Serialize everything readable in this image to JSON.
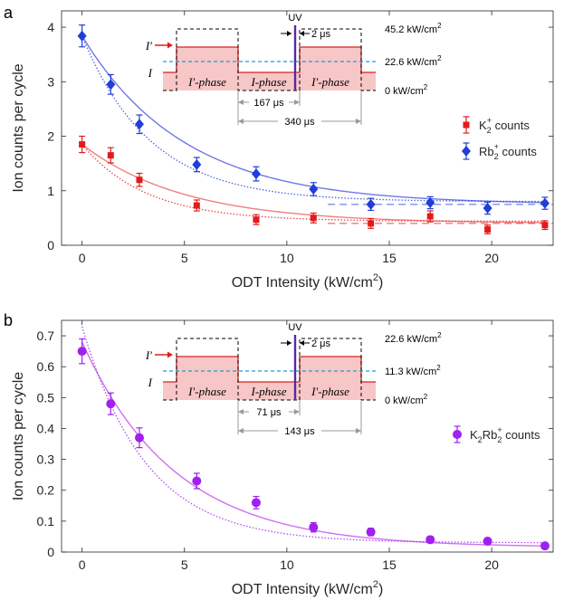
{
  "chart_data": [
    {
      "panel": "a",
      "type": "scatter",
      "xlabel": "ODT Intensity (kW/cm",
      "xlabel_sup": "2",
      "xlabel_end": ")",
      "ylabel": "Ion counts per cycle",
      "xlim": [
        -1,
        23
      ],
      "ylim": [
        0,
        4.3
      ],
      "xticks": [
        0,
        5,
        10,
        15,
        20
      ],
      "yticks": [
        0,
        1,
        2,
        3,
        4
      ],
      "series": [
        {
          "name": "K2+ counts",
          "legend": {
            "base": "K",
            "sub": "2",
            "sup": "+",
            "rest": " counts"
          },
          "color": "#e31a1c",
          "fit_color": "#f08080",
          "marker": "square",
          "x": [
            0,
            1.4,
            2.8,
            5.6,
            8.5,
            11.3,
            14.1,
            17.0,
            19.8,
            22.6
          ],
          "y": [
            1.85,
            1.65,
            1.2,
            0.73,
            0.47,
            0.5,
            0.4,
            0.53,
            0.29,
            0.37
          ],
          "err": [
            0.15,
            0.14,
            0.12,
            0.1,
            0.09,
            0.09,
            0.09,
            0.1,
            0.08,
            0.08
          ],
          "asymptote": 0.4,
          "fit_solid": {
            "a": 1.85,
            "c": 0.4,
            "k": 0.2
          },
          "fit_dotted": {
            "a": 1.85,
            "c": 0.44,
            "k": 0.32
          }
        },
        {
          "name": "Rb2+ counts",
          "legend": {
            "base": "Rb",
            "sub": "2",
            "sup": "+",
            "rest": " counts"
          },
          "color": "#1f3fd6",
          "fit_color": "#6f78e8",
          "marker": "diamond",
          "x": [
            0,
            1.4,
            2.8,
            5.6,
            8.5,
            11.3,
            14.1,
            17.0,
            19.8,
            22.6
          ],
          "y": [
            3.84,
            2.95,
            2.22,
            1.48,
            1.31,
            1.03,
            0.75,
            0.78,
            0.68,
            0.77
          ],
          "err": [
            0.2,
            0.18,
            0.17,
            0.13,
            0.13,
            0.12,
            0.11,
            0.11,
            0.11,
            0.11
          ],
          "asymptote": 0.75,
          "fit_solid": {
            "a": 3.84,
            "c": 0.75,
            "k": 0.2
          },
          "fit_dotted": {
            "a": 3.84,
            "c": 0.8,
            "k": 0.3
          }
        }
      ],
      "inset": {
        "uv_label": "UV",
        "pulse_label": "2 μs",
        "levels": [
          "45.2 kW/cm",
          "22.6 kW/cm",
          "0 kW/cm"
        ],
        "level_sup": "2",
        "phases": [
          "I′-phase",
          "I-phase",
          "I′-phase"
        ],
        "i_prime": "I′",
        "i": "I",
        "span1": "167 μs",
        "span2": "340 μs"
      }
    },
    {
      "panel": "b",
      "type": "scatter",
      "xlabel": "ODT Intensity (kW/cm",
      "xlabel_sup": "2",
      "xlabel_end": ")",
      "ylabel": "Ion counts per cycle",
      "xlim": [
        -1,
        23
      ],
      "ylim": [
        0,
        0.75
      ],
      "xticks": [
        0,
        5,
        10,
        15,
        20
      ],
      "yticks": [
        0,
        0.1,
        0.2,
        0.3,
        0.4,
        0.5,
        0.6,
        0.7
      ],
      "series": [
        {
          "name": "K2Rb2+ counts",
          "legend": {
            "base": "K",
            "sub": "2",
            "mid": "Rb",
            "sub2": "2",
            "sup": "+",
            "rest": " counts"
          },
          "color": "#a020f0",
          "fit_color": "#d070f0",
          "marker": "circle",
          "x": [
            0,
            1.4,
            2.8,
            5.6,
            8.5,
            11.3,
            14.1,
            17.0,
            19.8,
            22.6
          ],
          "y": [
            0.65,
            0.48,
            0.37,
            0.23,
            0.16,
            0.08,
            0.065,
            0.04,
            0.035,
            0.02
          ],
          "err": [
            0.04,
            0.035,
            0.032,
            0.025,
            0.02,
            0.015,
            0.012,
            0.01,
            0.008,
            0.007
          ],
          "fit_solid": {
            "a": 0.68,
            "c": 0.015,
            "k": 0.22
          },
          "fit_dotted": {
            "a": 0.73,
            "c": 0.03,
            "k": 0.32
          }
        }
      ],
      "inset": {
        "uv_label": "UV",
        "pulse_label": "2 μs",
        "levels": [
          "22.6 kW/cm",
          "11.3 kW/cm",
          "0 kW/cm"
        ],
        "level_sup": "2",
        "phases": [
          "I′-phase",
          "I-phase",
          "I′-phase"
        ],
        "i_prime": "I′",
        "i": "I",
        "span1": "71 μs",
        "span2": "143 μs"
      }
    }
  ],
  "panel_labels": [
    "a",
    "b"
  ]
}
